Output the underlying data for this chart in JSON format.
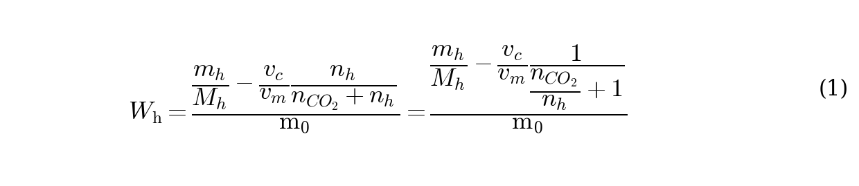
{
  "eq_left": "$W_{\\mathrm{h}}=\\dfrac{\\dfrac{m_h}{M_h}-\\dfrac{v_c}{v_m}\\dfrac{n_h}{n_{CO_2}+n_h}}{\\mathrm{m}_0}=\\dfrac{\\dfrac{m_h}{M_h}-\\dfrac{v_c}{v_m}\\dfrac{1}{\\dfrac{n_{CO_2}}{n_h}+1}}{\\mathrm{m}_0}$",
  "label": "(1)",
  "background_color": "#ffffff",
  "text_color": "#000000",
  "fontsize": 26
}
